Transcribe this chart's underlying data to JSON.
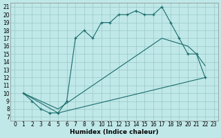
{
  "title": "",
  "xlabel": "Humidex (Indice chaleur)",
  "bg_color": "#c0e8e8",
  "grid_color": "#98c8c8",
  "line_color": "#1a6b6b",
  "xlim": [
    -0.5,
    23.5
  ],
  "ylim": [
    6.5,
    21.5
  ],
  "xticks": [
    0,
    1,
    2,
    3,
    4,
    5,
    6,
    7,
    8,
    9,
    10,
    11,
    12,
    13,
    14,
    15,
    16,
    17,
    18,
    19,
    20,
    21,
    22,
    23
  ],
  "yticks": [
    7,
    8,
    9,
    10,
    11,
    12,
    13,
    14,
    15,
    16,
    17,
    18,
    19,
    20,
    21
  ],
  "line1_x": [
    1,
    2,
    3,
    4,
    5,
    6,
    7,
    8,
    9,
    10,
    11,
    12,
    13,
    14,
    15,
    16,
    17,
    18,
    19,
    20,
    21,
    22
  ],
  "line1_y": [
    10,
    9,
    8,
    7.5,
    7.5,
    9,
    17,
    18,
    17,
    19,
    19,
    20,
    20,
    20.5,
    20,
    20,
    21,
    19,
    17,
    15,
    15,
    12
  ],
  "line2_x": [
    1,
    5,
    22
  ],
  "line2_y": [
    10,
    7.5,
    12
  ],
  "line3_x": [
    1,
    5,
    17,
    20,
    21,
    22
  ],
  "line3_y": [
    10,
    8,
    17,
    16,
    15,
    13.5
  ],
  "fontsize_xlabel": 6.5,
  "fontsize_tick": 5.5
}
